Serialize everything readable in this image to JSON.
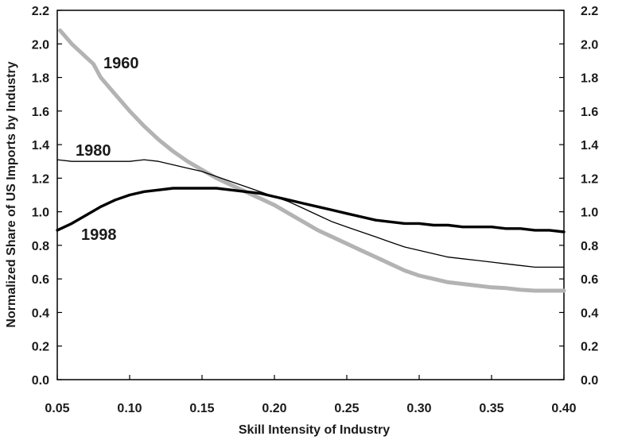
{
  "chart_data": {
    "type": "line",
    "xlabel": "Skill Intensity of Industry",
    "ylabel": "Normalized Share of US Imports by Industry",
    "xlim": [
      0.05,
      0.4
    ],
    "ylim": [
      0.0,
      2.2
    ],
    "grid": false,
    "right_axis": true,
    "x_ticks": [
      "0.05",
      "0.10",
      "0.15",
      "0.20",
      "0.25",
      "0.30",
      "0.35",
      "0.40"
    ],
    "y_ticks": [
      "0.0",
      "0.2",
      "0.4",
      "0.6",
      "0.8",
      "1.0",
      "1.2",
      "1.4",
      "1.6",
      "1.8",
      "2.0",
      "2.2"
    ],
    "series": [
      {
        "name": "1960",
        "color": "#b3b3b3",
        "x": [
          0.052,
          0.06,
          0.07,
          0.075,
          0.08,
          0.09,
          0.1,
          0.11,
          0.12,
          0.13,
          0.14,
          0.15,
          0.16,
          0.17,
          0.18,
          0.19,
          0.2,
          0.21,
          0.22,
          0.23,
          0.24,
          0.25,
          0.26,
          0.27,
          0.28,
          0.29,
          0.3,
          0.31,
          0.32,
          0.33,
          0.34,
          0.35,
          0.36,
          0.37,
          0.38,
          0.39,
          0.4
        ],
        "y": [
          2.08,
          2.0,
          1.92,
          1.88,
          1.8,
          1.7,
          1.6,
          1.51,
          1.43,
          1.36,
          1.3,
          1.25,
          1.2,
          1.16,
          1.12,
          1.08,
          1.04,
          0.99,
          0.94,
          0.89,
          0.85,
          0.81,
          0.77,
          0.73,
          0.69,
          0.65,
          0.62,
          0.6,
          0.58,
          0.57,
          0.56,
          0.55,
          0.545,
          0.535,
          0.53,
          0.53,
          0.53
        ]
      },
      {
        "name": "1980",
        "color": "#000000",
        "x": [
          0.05,
          0.06,
          0.07,
          0.08,
          0.09,
          0.1,
          0.11,
          0.12,
          0.13,
          0.14,
          0.15,
          0.16,
          0.17,
          0.18,
          0.19,
          0.2,
          0.21,
          0.22,
          0.23,
          0.24,
          0.25,
          0.26,
          0.27,
          0.28,
          0.29,
          0.3,
          0.31,
          0.32,
          0.33,
          0.34,
          0.35,
          0.36,
          0.37,
          0.38,
          0.39,
          0.4
        ],
        "y": [
          1.31,
          1.3,
          1.3,
          1.3,
          1.3,
          1.3,
          1.31,
          1.3,
          1.28,
          1.26,
          1.24,
          1.21,
          1.18,
          1.15,
          1.12,
          1.09,
          1.06,
          1.02,
          0.98,
          0.94,
          0.91,
          0.88,
          0.85,
          0.82,
          0.79,
          0.77,
          0.75,
          0.73,
          0.72,
          0.71,
          0.7,
          0.69,
          0.68,
          0.67,
          0.67,
          0.67
        ]
      },
      {
        "name": "1998",
        "color": "#000000",
        "x": [
          0.05,
          0.06,
          0.07,
          0.08,
          0.09,
          0.1,
          0.11,
          0.12,
          0.13,
          0.14,
          0.15,
          0.16,
          0.17,
          0.18,
          0.19,
          0.2,
          0.21,
          0.22,
          0.23,
          0.24,
          0.25,
          0.26,
          0.27,
          0.28,
          0.29,
          0.3,
          0.31,
          0.32,
          0.33,
          0.34,
          0.35,
          0.36,
          0.37,
          0.38,
          0.39,
          0.4
        ],
        "y": [
          0.89,
          0.93,
          0.98,
          1.03,
          1.07,
          1.1,
          1.12,
          1.13,
          1.14,
          1.14,
          1.14,
          1.14,
          1.13,
          1.12,
          1.11,
          1.09,
          1.07,
          1.05,
          1.03,
          1.01,
          0.99,
          0.97,
          0.95,
          0.94,
          0.93,
          0.93,
          0.92,
          0.92,
          0.91,
          0.91,
          0.91,
          0.9,
          0.9,
          0.89,
          0.89,
          0.88
        ]
      }
    ]
  }
}
